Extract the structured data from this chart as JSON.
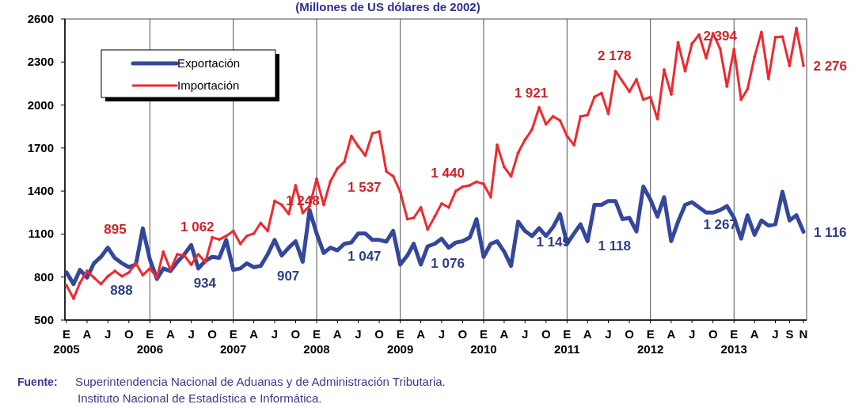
{
  "chart_data": {
    "type": "line",
    "title": "(Millones de US dólares de 2002)",
    "x": [
      "2005-01",
      "2005-02",
      "2005-03",
      "2005-04",
      "2005-05",
      "2005-06",
      "2005-07",
      "2005-08",
      "2005-09",
      "2005-10",
      "2005-11",
      "2005-12",
      "2006-01",
      "2006-02",
      "2006-03",
      "2006-04",
      "2006-05",
      "2006-06",
      "2006-07",
      "2006-08",
      "2006-09",
      "2006-10",
      "2006-11",
      "2006-12",
      "2007-01",
      "2007-02",
      "2007-03",
      "2007-04",
      "2007-05",
      "2007-06",
      "2007-07",
      "2007-08",
      "2007-09",
      "2007-10",
      "2007-11",
      "2007-12",
      "2008-01",
      "2008-02",
      "2008-03",
      "2008-04",
      "2008-05",
      "2008-06",
      "2008-07",
      "2008-08",
      "2008-09",
      "2008-10",
      "2008-11",
      "2008-12",
      "2009-01",
      "2009-02",
      "2009-03",
      "2009-04",
      "2009-05",
      "2009-06",
      "2009-07",
      "2009-08",
      "2009-09",
      "2009-10",
      "2009-11",
      "2009-12",
      "2010-01",
      "2010-02",
      "2010-03",
      "2010-04",
      "2010-05",
      "2010-06",
      "2010-07",
      "2010-08",
      "2010-09",
      "2010-10",
      "2010-11",
      "2010-12",
      "2011-01",
      "2011-02",
      "2011-03",
      "2011-04",
      "2011-05",
      "2011-06",
      "2011-07",
      "2011-08",
      "2011-09",
      "2011-10",
      "2011-11",
      "2011-12",
      "2012-01",
      "2012-02",
      "2012-03",
      "2012-04",
      "2012-05",
      "2012-06",
      "2012-07",
      "2012-08",
      "2012-09",
      "2012-10",
      "2012-11",
      "2012-12",
      "2013-01",
      "2013-02",
      "2013-03",
      "2013-04",
      "2013-05",
      "2013-06",
      "2013-07",
      "2013-08",
      "2013-09",
      "2013-10",
      "2013-11"
    ],
    "series": [
      {
        "name": "Exportación",
        "color": "#34479b",
        "values": [
          832,
          751,
          850,
          796,
          896,
          941,
          1005,
          932,
          896,
          869,
          888,
          1140,
          923,
          787,
          860,
          842,
          905,
          959,
          1023,
          860,
          914,
          941,
          934,
          1059,
          850,
          860,
          896,
          869,
          878,
          959,
          1059,
          950,
          1005,
          1050,
          907,
          1267,
          1104,
          968,
          1005,
          986,
          1032,
          1041,
          1104,
          1104,
          1059,
          1059,
          1047,
          1122,
          887,
          950,
          1032,
          887,
          1014,
          1032,
          1068,
          1005,
          1041,
          1050,
          1076,
          1204,
          941,
          1032,
          1050,
          977,
          878,
          1186,
          1122,
          1086,
          1141,
          1086,
          1149,
          1240,
          1032,
          1104,
          1168,
          1050,
          1304,
          1304,
          1331,
          1331,
          1204,
          1213,
          1118,
          1431,
          1340,
          1222,
          1358,
          1050,
          1186,
          1304,
          1322,
          1286,
          1250,
          1250,
          1267,
          1295,
          1213,
          1068,
          1231,
          1095,
          1195,
          1159,
          1168,
          1395,
          1195,
          1231,
          1116
        ],
        "value_labels": [
          null,
          null,
          null,
          null,
          null,
          null,
          null,
          null,
          null,
          null,
          "888",
          null,
          null,
          null,
          null,
          null,
          null,
          null,
          null,
          null,
          null,
          null,
          "934",
          null,
          null,
          null,
          null,
          null,
          null,
          null,
          null,
          null,
          null,
          null,
          "907",
          null,
          null,
          null,
          null,
          null,
          null,
          null,
          null,
          null,
          null,
          null,
          "1 047",
          null,
          null,
          null,
          null,
          null,
          null,
          null,
          null,
          null,
          null,
          null,
          "1 076",
          null,
          null,
          null,
          null,
          null,
          null,
          null,
          null,
          null,
          null,
          null,
          "1 149",
          null,
          null,
          null,
          null,
          null,
          null,
          null,
          null,
          null,
          null,
          null,
          "1 118",
          null,
          null,
          null,
          null,
          null,
          null,
          null,
          null,
          null,
          null,
          null,
          "1 267",
          null,
          null,
          null,
          null,
          null,
          null,
          null,
          null,
          null,
          null,
          null,
          "1 116"
        ]
      },
      {
        "name": "Importación",
        "color": "#ee2a2e",
        "marker": "cross",
        "values": [
          742,
          651,
          760,
          842,
          796,
          751,
          805,
          842,
          805,
          832,
          895,
          814,
          860,
          796,
          977,
          850,
          959,
          950,
          887,
          959,
          905,
          1077,
          1062,
          1086,
          1122,
          1032,
          1086,
          1104,
          1177,
          1122,
          1331,
          1304,
          1240,
          1440,
          1248,
          1295,
          1485,
          1304,
          1467,
          1558,
          1603,
          1784,
          1712,
          1648,
          1802,
          1815,
          1537,
          1503,
          1394,
          1204,
          1213,
          1286,
          1132,
          1222,
          1313,
          1286,
          1400,
          1430,
          1440,
          1465,
          1449,
          1358,
          1721,
          1567,
          1503,
          1667,
          1757,
          1830,
          1984,
          1866,
          1921,
          1893,
          1784,
          1721,
          1920,
          1930,
          2056,
          2083,
          1939,
          2237,
          2165,
          2093,
          2178,
          2038,
          2056,
          1902,
          2246,
          2074,
          2437,
          2237,
          2428,
          2491,
          2328,
          2500,
          2394,
          2129,
          2390,
          2038,
          2111,
          2337,
          2509,
          2183,
          2473,
          2477,
          2274,
          2537,
          2276
        ],
        "value_labels": [
          null,
          null,
          null,
          null,
          null,
          null,
          null,
          null,
          null,
          null,
          "895",
          null,
          null,
          null,
          null,
          null,
          null,
          null,
          null,
          null,
          null,
          null,
          "1 062",
          null,
          null,
          null,
          null,
          null,
          null,
          null,
          null,
          null,
          null,
          null,
          "1 248",
          null,
          null,
          null,
          null,
          null,
          null,
          null,
          null,
          null,
          null,
          null,
          "1 537",
          null,
          null,
          null,
          null,
          null,
          null,
          null,
          null,
          null,
          null,
          null,
          "1 440",
          null,
          null,
          null,
          null,
          null,
          null,
          null,
          null,
          null,
          null,
          null,
          "1 921",
          null,
          null,
          null,
          null,
          null,
          null,
          null,
          null,
          null,
          null,
          null,
          "2 178",
          null,
          null,
          null,
          null,
          null,
          null,
          null,
          null,
          null,
          null,
          null,
          "2 394",
          null,
          null,
          null,
          null,
          null,
          null,
          null,
          null,
          null,
          null,
          null,
          "2 276"
        ]
      }
    ],
    "xlim": [
      "2005-01",
      "2013-11"
    ],
    "xticks": [
      {
        "value": "2005-01",
        "label": "E\n2005"
      },
      {
        "value": "2005-04",
        "label": "A"
      },
      {
        "value": "2005-07",
        "label": "J"
      },
      {
        "value": "2005-10",
        "label": "O"
      },
      {
        "value": "2006-01",
        "label": "E\n2006"
      },
      {
        "value": "2006-04",
        "label": "A"
      },
      {
        "value": "2006-07",
        "label": "J"
      },
      {
        "value": "2006-10",
        "label": "O"
      },
      {
        "value": "2007-01",
        "label": "E\n2007"
      },
      {
        "value": "2007-04",
        "label": "A"
      },
      {
        "value": "2007-07",
        "label": "J"
      },
      {
        "value": "2007-10",
        "label": "O"
      },
      {
        "value": "2008-01",
        "label": "E\n2008"
      },
      {
        "value": "2008-04",
        "label": "A"
      },
      {
        "value": "2008-07",
        "label": "J"
      },
      {
        "value": "2008-10",
        "label": "O"
      },
      {
        "value": "2009-01",
        "label": "E\n2009"
      },
      {
        "value": "2009-04",
        "label": "A"
      },
      {
        "value": "2009-07",
        "label": "J"
      },
      {
        "value": "2009-10",
        "label": "O"
      },
      {
        "value": "2010-01",
        "label": "E\n2010"
      },
      {
        "value": "2010-04",
        "label": "A"
      },
      {
        "value": "2010-07",
        "label": "J"
      },
      {
        "value": "2010-10",
        "label": "O"
      },
      {
        "value": "2011-01",
        "label": "E\n2011"
      },
      {
        "value": "2011-04",
        "label": "A"
      },
      {
        "value": "2011-07",
        "label": "J"
      },
      {
        "value": "2011-10",
        "label": "O"
      },
      {
        "value": "2012-01",
        "label": "E\n2012"
      },
      {
        "value": "2012-04",
        "label": "A"
      },
      {
        "value": "2012-07",
        "label": "J"
      },
      {
        "value": "2012-10",
        "label": "O"
      },
      {
        "value": "2013-01",
        "label": "E\n2013"
      },
      {
        "value": "2013-04",
        "label": "A"
      },
      {
        "value": "2013-07",
        "label": "J"
      },
      {
        "value": "2013-09",
        "label": "S"
      },
      {
        "value": "2013-11",
        "label": "N"
      }
    ],
    "ylim": [
      500,
      2600
    ],
    "yticks": [
      500,
      800,
      1100,
      1400,
      1700,
      2000,
      2300,
      2600
    ],
    "ref_lines": [
      {
        "axis": "x",
        "value": "2006-01",
        "color": "#555555"
      },
      {
        "axis": "x",
        "value": "2007-01",
        "color": "#555555"
      },
      {
        "axis": "x",
        "value": "2008-01",
        "color": "#555555"
      },
      {
        "axis": "x",
        "value": "2009-01",
        "color": "#555555"
      },
      {
        "axis": "x",
        "value": "2010-01",
        "color": "#555555"
      },
      {
        "axis": "x",
        "value": "2011-01",
        "color": "#555555"
      },
      {
        "axis": "x",
        "value": "2012-01",
        "color": "#555555"
      },
      {
        "axis": "x",
        "value": "2013-01",
        "color": "#555555"
      }
    ],
    "legend": "top left",
    "annotations": [
      "Fuente:",
      "Superintendencia Nacional de Aduanas y de Administración Tributaria.",
      "Instituto Nacional de Estadística e Informática."
    ]
  }
}
